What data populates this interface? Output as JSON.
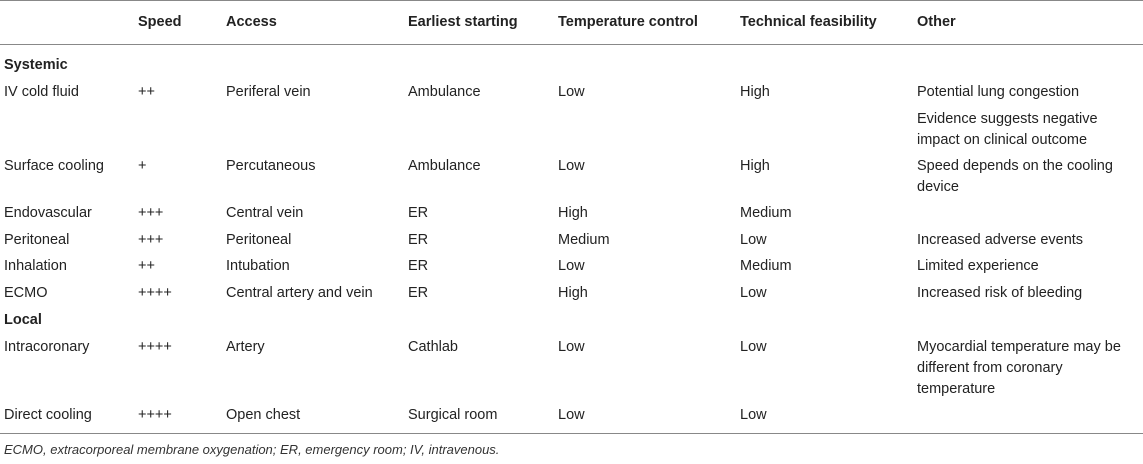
{
  "table": {
    "headers": [
      "",
      "Speed",
      "Access",
      "Earliest starting",
      "Temperature control",
      "Technical feasibility",
      "Other"
    ],
    "sections": [
      {
        "title": "Systemic",
        "rows": [
          [
            "IV cold fluid",
            "++",
            "Periferal vein",
            "Ambulance",
            "Low",
            "High",
            "Potential lung congestion"
          ],
          [
            "",
            "",
            "",
            "",
            "",
            "",
            "Evidence suggests negative impact on clinical outcome"
          ],
          [
            "Surface cooling",
            "+",
            "Percutaneous",
            "Ambulance",
            "Low",
            "High",
            "Speed depends on the cooling device"
          ],
          [
            "Endovascular",
            "+++",
            "Central vein",
            "ER",
            "High",
            "Medium",
            ""
          ],
          [
            "Peritoneal",
            "+++",
            "Peritoneal",
            "ER",
            "Medium",
            "Low",
            "Increased adverse events"
          ],
          [
            "Inhalation",
            "++",
            "Intubation",
            "ER",
            "Low",
            "Medium",
            "Limited experience"
          ],
          [
            "ECMO",
            "++++",
            "Central artery and vein",
            "ER",
            "High",
            "Low",
            "Increased risk of bleeding"
          ]
        ]
      },
      {
        "title": "Local",
        "rows": [
          [
            "Intracoronary",
            "++++",
            "Artery",
            "Cathlab",
            "Low",
            "Low",
            "Myocardial temperature may be different from coronary temperature"
          ],
          [
            "Direct cooling",
            "++++",
            "Open chest",
            "Surgical room",
            "Low",
            "Low",
            ""
          ]
        ]
      }
    ]
  },
  "footnote": "ECMO, extracorporeal membrane oxygenation; ER, emergency room; IV, intravenous."
}
